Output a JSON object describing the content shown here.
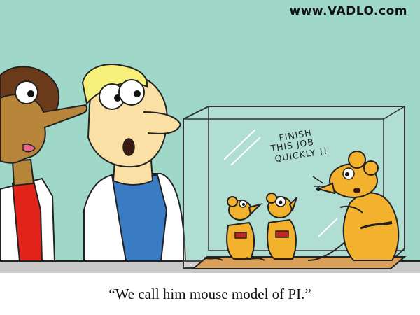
{
  "watermark": "www.VADLO.com",
  "speech": {
    "line1": "FINISH",
    "line2": "THIS JOB",
    "line3": "QUICKLY !!"
  },
  "caption": "“We call him mouse model of PI.”",
  "colors": {
    "background_wall": "#9fd7c8",
    "floor": "#c9c9c9",
    "mouse_body": "#f2b22e",
    "base_board": "#d9a05a",
    "red_top": "#e2231a",
    "blue_shirt": "#3a7cc3",
    "skin": "#fbe0a6"
  }
}
